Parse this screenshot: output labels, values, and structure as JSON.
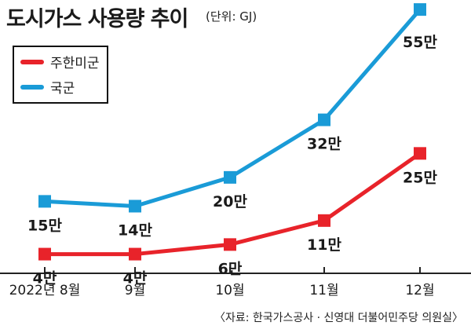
{
  "header": {
    "title": "도시가스 사용량 추이",
    "unit": "(단위: GJ)"
  },
  "legend": {
    "items": [
      {
        "label": "주한미군",
        "color": "#e8232a"
      },
      {
        "label": "국군",
        "color": "#1a9bd7"
      }
    ]
  },
  "source": "〈자료: 한국가스공사 · 신영대 더불어민주당 의원실〉",
  "chart_data": {
    "type": "line",
    "categories": [
      "2022년 8월",
      "9월",
      "10월",
      "11월",
      "12월"
    ],
    "series": [
      {
        "name": "국군",
        "color": "#1a9bd7",
        "values": [
          150000,
          140000,
          200000,
          320000,
          550000
        ],
        "labels": [
          "15만",
          "14만",
          "20만",
          "32만",
          "55만"
        ]
      },
      {
        "name": "주한미군",
        "color": "#e8232a",
        "values": [
          40000,
          40000,
          60000,
          110000,
          250000
        ],
        "labels": [
          "4만",
          "4만",
          "6만",
          "11만",
          "25만"
        ]
      }
    ],
    "ylim": [
      0,
      560000
    ],
    "grid": false,
    "legend_position": "top-left"
  }
}
